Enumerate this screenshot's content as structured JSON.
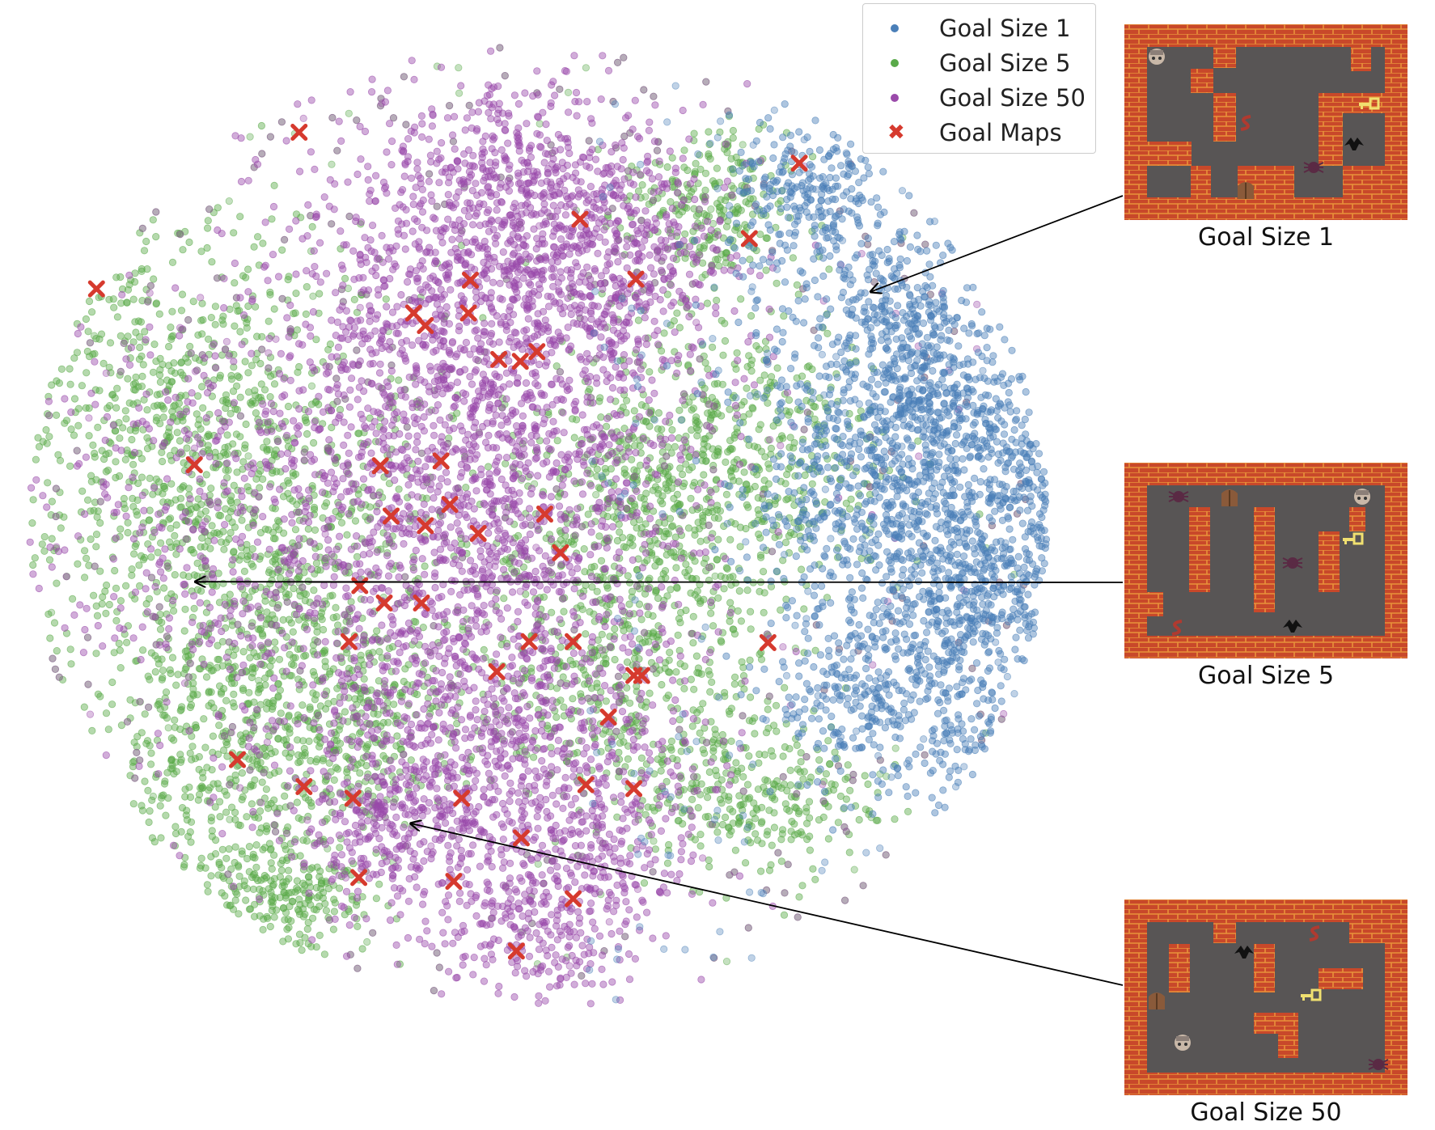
{
  "chart_data": {
    "type": "scatter",
    "title": "",
    "xlabel": "",
    "ylabel": "",
    "axes_visible": false,
    "grid": false,
    "legend_position": "top-right",
    "series": [
      {
        "name": "Goal Size 1",
        "color": "#4a7fb8",
        "marker": "circle",
        "clusters": [
          {
            "cx": 0.78,
            "cy": 0.83,
            "sd": 0.03,
            "n": 260
          },
          {
            "cx": 0.87,
            "cy": 0.72,
            "sd": 0.028,
            "n": 220
          },
          {
            "cx": 0.91,
            "cy": 0.62,
            "sd": 0.03,
            "n": 220
          },
          {
            "cx": 1.02,
            "cy": 0.55,
            "sd": 0.03,
            "n": 260
          },
          {
            "cx": 0.86,
            "cy": 0.52,
            "sd": 0.05,
            "n": 500
          },
          {
            "cx": 0.94,
            "cy": 0.43,
            "sd": 0.04,
            "n": 320
          },
          {
            "cx": 0.84,
            "cy": 0.32,
            "sd": 0.035,
            "n": 300
          },
          {
            "cx": 0.97,
            "cy": 0.42,
            "sd": 0.03,
            "n": 140
          },
          {
            "cx": 0.95,
            "cy": 0.28,
            "sd": 0.03,
            "n": 120
          },
          {
            "cx": 0.86,
            "cy": 0.62,
            "sd": 0.06,
            "n": 400
          }
        ]
      },
      {
        "name": "Goal Size 5",
        "color": "#5aaa4a",
        "marker": "circle",
        "clusters": [
          {
            "cx": 0.12,
            "cy": 0.62,
            "sd": 0.07,
            "n": 700
          },
          {
            "cx": 0.22,
            "cy": 0.45,
            "sd": 0.07,
            "n": 700
          },
          {
            "cx": 0.18,
            "cy": 0.25,
            "sd": 0.05,
            "n": 400
          },
          {
            "cx": 0.3,
            "cy": 0.3,
            "sd": 0.04,
            "n": 300
          },
          {
            "cx": 0.62,
            "cy": 0.52,
            "sd": 0.06,
            "n": 600
          },
          {
            "cx": 0.58,
            "cy": 0.35,
            "sd": 0.05,
            "n": 400
          },
          {
            "cx": 0.67,
            "cy": 0.82,
            "sd": 0.03,
            "n": 250
          },
          {
            "cx": 0.68,
            "cy": 0.22,
            "sd": 0.03,
            "n": 160
          },
          {
            "cx": 0.26,
            "cy": 0.12,
            "sd": 0.025,
            "n": 160
          },
          {
            "cx": 0.2,
            "cy": 0.1,
            "sd": 0.025,
            "n": 120
          },
          {
            "cx": 0.76,
            "cy": 0.22,
            "sd": 0.03,
            "n": 140
          },
          {
            "cx": 0.72,
            "cy": 0.58,
            "sd": 0.05,
            "n": 300
          }
        ]
      },
      {
        "name": "Goal Size 50",
        "color": "#9a4aaa",
        "marker": "circle",
        "clusters": [
          {
            "cx": 0.45,
            "cy": 0.72,
            "sd": 0.08,
            "n": 1300
          },
          {
            "cx": 0.44,
            "cy": 0.5,
            "sd": 0.08,
            "n": 1100
          },
          {
            "cx": 0.44,
            "cy": 0.25,
            "sd": 0.07,
            "n": 900
          },
          {
            "cx": 0.5,
            "cy": 0.08,
            "sd": 0.03,
            "n": 200
          },
          {
            "cx": 0.35,
            "cy": 0.2,
            "sd": 0.03,
            "n": 200
          },
          {
            "cx": 0.57,
            "cy": 0.18,
            "sd": 0.04,
            "n": 200
          },
          {
            "cx": 0.58,
            "cy": 0.78,
            "sd": 0.04,
            "n": 300
          },
          {
            "cx": 0.48,
            "cy": 0.85,
            "sd": 0.04,
            "n": 300
          },
          {
            "cx": 0.15,
            "cy": 0.5,
            "sd": 0.08,
            "n": 400
          }
        ]
      },
      {
        "name": "Goal Maps",
        "color": "#d63a2e",
        "marker": "x",
        "points": [
          [
            0.256,
            0.905
          ],
          [
            0.767,
            0.873
          ],
          [
            0.543,
            0.815
          ],
          [
            0.716,
            0.795
          ],
          [
            0.049,
            0.743
          ],
          [
            0.431,
            0.752
          ],
          [
            0.6,
            0.753
          ],
          [
            0.373,
            0.718
          ],
          [
            0.385,
            0.705
          ],
          [
            0.429,
            0.718
          ],
          [
            0.499,
            0.678
          ],
          [
            0.46,
            0.67
          ],
          [
            0.482,
            0.668
          ],
          [
            0.149,
            0.561
          ],
          [
            0.339,
            0.56
          ],
          [
            0.401,
            0.565
          ],
          [
            0.41,
            0.52
          ],
          [
            0.35,
            0.508
          ],
          [
            0.385,
            0.498
          ],
          [
            0.507,
            0.51
          ],
          [
            0.439,
            0.49
          ],
          [
            0.523,
            0.47
          ],
          [
            0.318,
            0.436
          ],
          [
            0.343,
            0.418
          ],
          [
            0.381,
            0.418
          ],
          [
            0.307,
            0.378
          ],
          [
            0.491,
            0.378
          ],
          [
            0.536,
            0.378
          ],
          [
            0.458,
            0.347
          ],
          [
            0.598,
            0.343
          ],
          [
            0.606,
            0.343
          ],
          [
            0.572,
            0.3
          ],
          [
            0.735,
            0.377
          ],
          [
            0.193,
            0.256
          ],
          [
            0.261,
            0.228
          ],
          [
            0.311,
            0.216
          ],
          [
            0.422,
            0.216
          ],
          [
            0.549,
            0.23
          ],
          [
            0.598,
            0.226
          ],
          [
            0.483,
            0.175
          ],
          [
            0.317,
            0.134
          ],
          [
            0.414,
            0.13
          ],
          [
            0.536,
            0.112
          ],
          [
            0.478,
            0.058
          ]
        ]
      }
    ],
    "annotations": [
      {
        "label": "Goal Size 1",
        "arrow_to": [
          0.84,
          0.74
        ]
      },
      {
        "label": "Goal Size 5",
        "arrow_to": [
          0.15,
          0.44
        ]
      },
      {
        "label": "Goal Size 50",
        "arrow_to": [
          0.37,
          0.19
        ]
      }
    ]
  },
  "legend": {
    "items": [
      {
        "label": "Goal Size 1",
        "color": "#4a7fb8",
        "marker": "circle"
      },
      {
        "label": "Goal Size 5",
        "color": "#5aaa4a",
        "marker": "circle"
      },
      {
        "label": "Goal Size 50",
        "color": "#9a4aaa",
        "marker": "circle"
      },
      {
        "label": "Goal Maps",
        "color": "#d63a2e",
        "marker": "x"
      }
    ]
  },
  "panels": [
    {
      "caption": "Goal Size 1"
    },
    {
      "caption": "Goal Size 5"
    },
    {
      "caption": "Goal Size 50"
    }
  ],
  "colors": {
    "brick": "#c8482a",
    "mortar": "#e8923a",
    "floor": "#585555"
  }
}
